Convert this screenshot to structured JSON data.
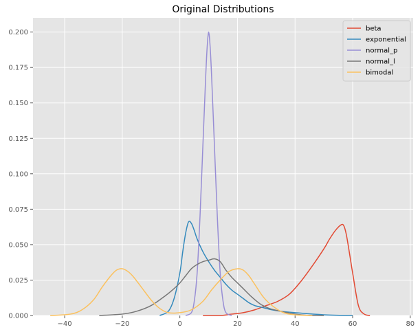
{
  "chart_data": {
    "type": "line",
    "title": "Original Distributions",
    "xlabel": "",
    "ylabel": "",
    "xlim": [
      -51,
      81
    ],
    "ylim": [
      0,
      0.21
    ],
    "xticks": [
      -40,
      -20,
      0,
      20,
      40,
      60,
      80
    ],
    "yticks": [
      0.0,
      0.025,
      0.05,
      0.075,
      0.1,
      0.125,
      0.15,
      0.175,
      0.2
    ],
    "xtick_labels": [
      "−40",
      "−20",
      "0",
      "20",
      "40",
      "60",
      "80"
    ],
    "ytick_labels": [
      "0.000",
      "0.025",
      "0.050",
      "0.075",
      "0.100",
      "0.125",
      "0.150",
      "0.175",
      "0.200"
    ],
    "grid": true,
    "legend_position": "top-right",
    "series": [
      {
        "name": "beta",
        "color": "#E24A33",
        "x": [
          8,
          14,
          18,
          22,
          26,
          30,
          34,
          38,
          42,
          46,
          50,
          52,
          54,
          56,
          57,
          58,
          60,
          62,
          64,
          66
        ],
        "y": [
          0.0,
          0.0,
          0.001,
          0.002,
          0.004,
          0.007,
          0.01,
          0.015,
          0.024,
          0.035,
          0.047,
          0.054,
          0.06,
          0.064,
          0.063,
          0.055,
          0.03,
          0.007,
          0.001,
          0.0
        ]
      },
      {
        "name": "exponential",
        "color": "#348ABD",
        "x": [
          -7,
          -4,
          -2,
          0,
          1,
          2,
          3,
          4,
          5,
          6,
          8,
          10,
          12,
          14,
          16,
          18,
          20,
          22,
          24,
          26,
          28,
          30,
          32,
          35,
          40,
          50,
          60
        ],
        "y": [
          0.0,
          0.003,
          0.012,
          0.03,
          0.045,
          0.058,
          0.066,
          0.065,
          0.06,
          0.054,
          0.045,
          0.038,
          0.032,
          0.027,
          0.022,
          0.018,
          0.015,
          0.012,
          0.009,
          0.007,
          0.006,
          0.005,
          0.004,
          0.003,
          0.002,
          0.0005,
          0.0
        ]
      },
      {
        "name": "normal_p",
        "color": "#988ED5",
        "x": [
          2,
          4,
          5,
          6,
          7,
          8,
          9,
          9.5,
          10,
          10.5,
          11,
          12,
          13,
          14,
          15,
          16,
          18
        ],
        "y": [
          0.0,
          0.002,
          0.01,
          0.03,
          0.07,
          0.12,
          0.17,
          0.19,
          0.2,
          0.19,
          0.17,
          0.12,
          0.07,
          0.03,
          0.01,
          0.002,
          0.0
        ]
      },
      {
        "name": "normal_l",
        "color": "#777777",
        "x": [
          -28,
          -20,
          -15,
          -10,
          -5,
          -2,
          0,
          2,
          4,
          6,
          8,
          10,
          12,
          14,
          16,
          18,
          20,
          22,
          25,
          28,
          31,
          35,
          40,
          45,
          50
        ],
        "y": [
          0.0,
          0.001,
          0.003,
          0.007,
          0.014,
          0.019,
          0.023,
          0.028,
          0.033,
          0.036,
          0.038,
          0.039,
          0.04,
          0.038,
          0.032,
          0.027,
          0.023,
          0.019,
          0.013,
          0.008,
          0.005,
          0.003,
          0.001,
          0.0,
          0.0
        ]
      },
      {
        "name": "bimodal",
        "color": "#FBC15E",
        "x": [
          -45,
          -38,
          -34,
          -30,
          -27,
          -24,
          -22,
          -20,
          -18,
          -16,
          -13,
          -10,
          -7,
          -4,
          0,
          4,
          8,
          11,
          14,
          17,
          20,
          22,
          24,
          26,
          29,
          32,
          36,
          40,
          46
        ],
        "y": [
          0.0,
          0.001,
          0.004,
          0.011,
          0.02,
          0.028,
          0.032,
          0.033,
          0.031,
          0.027,
          0.019,
          0.011,
          0.005,
          0.002,
          0.002,
          0.004,
          0.01,
          0.018,
          0.025,
          0.031,
          0.033,
          0.032,
          0.028,
          0.022,
          0.013,
          0.007,
          0.002,
          0.0005,
          0.0
        ]
      }
    ]
  }
}
